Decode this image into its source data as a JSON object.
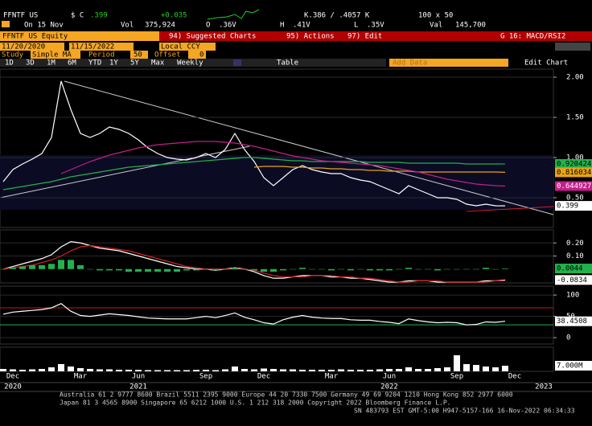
{
  "header": {
    "ticker": "FFNTF US",
    "currency": "$ C",
    "last": ".399",
    "change": "+0.035",
    "date": "On 15 Nov",
    "vol_label": "Vol",
    "vol": "375,924",
    "open_label": "O",
    "open": ".36V",
    "high_label": "H",
    "high": ".41V",
    "low_label": "L",
    "low": ".35V",
    "bid_ask": "K.386 / .4057 K",
    "size": "100 x 50",
    "val_label": "Val",
    "val": "145,700"
  },
  "menu": {
    "security": "FFNTF US Equity",
    "suggested": "94) Suggested Charts",
    "actions": "95) Actions",
    "edit": "97) Edit",
    "template": "G 16: MACD/RSI2"
  },
  "settings": {
    "start": "11/20/2020",
    "end": "11/15/2022",
    "ccy": "Local CCY",
    "study_label": "Study",
    "study": "Simple MA",
    "period_label": "Period",
    "period": "50",
    "offset_label": "Offset",
    "offset": "0",
    "add_data": "Add Data",
    "edit_chart": "Edit Chart"
  },
  "toolbar": {
    "ranges": [
      "1D",
      "3D",
      "1M",
      "6M",
      "YTD",
      "1Y",
      "5Y",
      "Max"
    ],
    "freq": "Weekly",
    "table": "Table"
  },
  "footer": {
    "line1": "Australia 61 2 9777 8600 Brazil 5511 2395 9000 Europe 44 20 7330 7500 Germany 49 69 9204 1210 Hong Kong 852 2977 6000",
    "line2": "Japan 81 3 4565 8900      Singapore 65 6212 1000      U.S. 1 212 318 2000           Copyright 2022 Bloomberg Finance L.P.",
    "line3": "SN 483793 EST  GMT-5:00 H947-5157-166 16-Nov-2022 06:34:33"
  },
  "chart_data": [
    {
      "type": "line",
      "panel": "price",
      "categories": [
        null,
        "Dec",
        null,
        null,
        null,
        null,
        null,
        null,
        "Mar",
        null,
        null,
        null,
        null,
        null,
        "Jun",
        null,
        null,
        null,
        null,
        null,
        null,
        "Sep",
        null,
        null,
        null,
        null,
        null,
        "Dec",
        null,
        null,
        null,
        null,
        null,
        null,
        "Mar",
        null,
        null,
        null,
        null,
        null,
        "Jun",
        null,
        null,
        null,
        null,
        null,
        null,
        "Sep",
        null,
        null,
        null,
        null,
        null,
        "Dec",
        null,
        null,
        null
      ],
      "years": [
        null,
        "2020",
        null,
        null,
        null,
        null,
        null,
        null,
        null,
        null,
        null,
        null,
        null,
        null,
        "2021",
        null,
        null,
        null,
        null,
        null,
        null,
        null,
        null,
        null,
        null,
        null,
        null,
        null,
        null,
        null,
        null,
        null,
        null,
        null,
        null,
        null,
        null,
        null,
        null,
        null,
        "2022",
        null,
        null,
        null,
        null,
        null,
        null,
        null,
        null,
        null,
        null,
        null,
        null,
        null,
        null,
        null,
        "2023"
      ],
      "ylim": [
        0.13,
        2.1
      ],
      "yticks": [
        {
          "value": 0.5,
          "label": "0.50"
        },
        {
          "value": 1,
          "label": "1.00"
        },
        {
          "value": 1.5,
          "label": "1.50"
        },
        {
          "value": 2,
          "label": "2.00"
        }
      ],
      "series": [
        {
          "color": "#ffffff",
          "values": [
            0.7,
            0.85,
            0.92,
            0.98,
            1.05,
            1.25,
            1.95,
            1.6,
            1.3,
            1.25,
            1.3,
            1.38,
            1.35,
            1.3,
            1.22,
            1.12,
            1.05,
            1.0,
            0.98,
            0.97,
            1.0,
            1.05,
            1.0,
            1.1,
            1.3,
            1.1,
            0.95,
            0.75,
            0.65,
            0.75,
            0.85,
            0.9,
            0.85,
            0.82,
            0.8,
            0.8,
            0.75,
            0.72,
            0.7,
            0.65,
            0.6,
            0.55,
            0.65,
            0.6,
            0.55,
            0.5,
            0.5,
            0.48,
            0.42,
            0.4,
            0.42,
            0.4,
            0.399,
            null,
            null,
            null,
            null
          ],
          "box_text": "#000000"
        },
        {
          "color": "#22b14c",
          "values": [
            0.6,
            0.62,
            0.64,
            0.66,
            0.68,
            0.7,
            0.73,
            0.76,
            0.78,
            0.8,
            0.82,
            0.84,
            0.86,
            0.88,
            0.89,
            0.9,
            0.91,
            0.92,
            0.93,
            0.94,
            0.95,
            0.96,
            0.97,
            0.98,
            0.99,
            1.0,
            1.0,
            0.99,
            0.98,
            0.97,
            0.96,
            0.96,
            0.95,
            0.95,
            0.95,
            0.95,
            0.95,
            0.95,
            0.94,
            0.94,
            0.94,
            0.94,
            0.93,
            0.93,
            0.93,
            0.93,
            0.93,
            0.93,
            0.92,
            0.92,
            0.92,
            0.92,
            0.920424,
            null,
            null,
            null,
            null
          ],
          "box_text": "#000000"
        },
        {
          "color": "#e8a317",
          "values": [
            null,
            null,
            null,
            null,
            null,
            null,
            null,
            null,
            null,
            null,
            null,
            null,
            null,
            null,
            null,
            null,
            null,
            null,
            null,
            null,
            null,
            null,
            null,
            null,
            null,
            null,
            0.88,
            0.89,
            0.89,
            0.89,
            0.88,
            0.88,
            0.87,
            0.87,
            0.86,
            0.86,
            0.85,
            0.85,
            0.84,
            0.84,
            0.83,
            0.83,
            0.83,
            0.82,
            0.82,
            0.82,
            0.82,
            0.82,
            0.82,
            0.82,
            0.82,
            0.82,
            0.816034,
            null,
            null,
            null,
            null
          ],
          "box_text": "#000000"
        },
        {
          "color": "#c0208a",
          "values": [
            null,
            null,
            null,
            null,
            null,
            null,
            0.8,
            0.85,
            0.9,
            0.95,
            0.99,
            1.03,
            1.06,
            1.09,
            1.12,
            1.14,
            1.16,
            1.17,
            1.18,
            1.19,
            1.2,
            1.2,
            1.2,
            1.19,
            1.18,
            1.16,
            1.14,
            1.11,
            1.08,
            1.05,
            1.02,
            1.0,
            0.98,
            0.96,
            0.95,
            0.94,
            0.93,
            0.92,
            0.91,
            0.9,
            0.88,
            0.86,
            0.84,
            0.82,
            0.79,
            0.76,
            0.73,
            0.71,
            0.69,
            0.67,
            0.66,
            0.65,
            0.644927,
            null,
            null,
            null,
            null
          ],
          "box_text": "#ffffff"
        }
      ]
    },
    {
      "type": "line",
      "panel": "macd",
      "ylim": [
        -0.106,
        0.3
      ],
      "yticks": [
        {
          "value": 0.1,
          "label": "0.10"
        },
        {
          "value": 0.2,
          "label": "0.20"
        }
      ],
      "series": [
        {
          "color": "#ffffff",
          "values": [
            0.0,
            0.02,
            0.04,
            0.06,
            0.08,
            0.11,
            0.17,
            0.21,
            0.2,
            0.18,
            0.16,
            0.15,
            0.14,
            0.12,
            0.1,
            0.08,
            0.06,
            0.04,
            0.02,
            0.01,
            0.0,
            0.0,
            -0.01,
            0.0,
            0.01,
            0.0,
            -0.02,
            -0.05,
            -0.07,
            -0.07,
            -0.06,
            -0.05,
            -0.05,
            -0.05,
            -0.06,
            -0.06,
            -0.07,
            -0.07,
            -0.08,
            -0.09,
            -0.1,
            -0.1,
            -0.09,
            -0.09,
            -0.09,
            -0.1,
            -0.1,
            -0.1,
            -0.1,
            -0.1,
            -0.09,
            -0.09,
            -0.0834,
            null,
            null,
            null,
            null
          ],
          "box_text": "#000000"
        },
        {
          "color": "#d02020",
          "values": [
            0.0,
            0.01,
            0.02,
            0.03,
            0.05,
            0.07,
            0.1,
            0.14,
            0.17,
            0.18,
            0.17,
            0.16,
            0.15,
            0.14,
            0.12,
            0.1,
            0.08,
            0.06,
            0.04,
            0.02,
            0.01,
            0.0,
            0.0,
            0.0,
            0.0,
            0.0,
            -0.01,
            -0.03,
            -0.05,
            -0.06,
            -0.06,
            -0.06,
            -0.05,
            -0.05,
            -0.05,
            -0.06,
            -0.06,
            -0.07,
            -0.07,
            -0.08,
            -0.09,
            -0.1,
            -0.1,
            -0.09,
            -0.09,
            -0.09,
            -0.1,
            -0.1,
            -0.1,
            -0.1,
            -0.1,
            -0.09,
            -0.09,
            null,
            null,
            null,
            null
          ]
        },
        {
          "type": "bar",
          "color": "#22b14c",
          "values": [
            0.0,
            0.01,
            0.02,
            0.03,
            0.03,
            0.04,
            0.07,
            0.07,
            0.03,
            0.0,
            -0.01,
            -0.01,
            -0.01,
            -0.02,
            -0.02,
            -0.02,
            -0.02,
            -0.02,
            -0.02,
            -0.01,
            -0.01,
            0.0,
            -0.01,
            0.0,
            0.01,
            0.0,
            -0.01,
            -0.02,
            -0.02,
            -0.01,
            0.0,
            0.01,
            0.0,
            0.0,
            -0.01,
            0.0,
            -0.01,
            0.0,
            -0.01,
            -0.01,
            -0.01,
            0.0,
            0.01,
            0.0,
            0.0,
            -0.01,
            0.0,
            0.0,
            0.0,
            0.0,
            0.01,
            0.0,
            0.0044,
            null,
            null,
            null,
            null
          ],
          "box_text": "#000000"
        }
      ]
    },
    {
      "type": "line",
      "panel": "rsi",
      "ylim": [
        -15,
        121
      ],
      "yticks": [
        0,
        50,
        100
      ],
      "levels": [
        {
          "value": 70,
          "color": "#c01818"
        },
        {
          "value": 30,
          "color": "#22b14c"
        }
      ],
      "series": [
        {
          "color": "#ffffff",
          "values": [
            55,
            60,
            62,
            64,
            66,
            70,
            80,
            62,
            52,
            50,
            53,
            56,
            54,
            52,
            49,
            46,
            45,
            44,
            44,
            44,
            47,
            50,
            47,
            52,
            58,
            48,
            42,
            35,
            32,
            42,
            48,
            52,
            48,
            46,
            45,
            45,
            42,
            41,
            41,
            38,
            36,
            33,
            44,
            40,
            37,
            35,
            36,
            35,
            30,
            31,
            37,
            36,
            38.4508,
            null,
            null,
            null,
            null
          ],
          "box_text": "#000000"
        }
      ]
    },
    {
      "type": "bar",
      "panel": "volume",
      "ylim": [
        0,
        30000000
      ],
      "series": [
        {
          "color": "#ffffff",
          "values": [
            3000000,
            2500000,
            2000000,
            2500000,
            3000000,
            5000000,
            9000000,
            6000000,
            4000000,
            3000000,
            2500000,
            2500000,
            2000000,
            2000000,
            1800000,
            1500000,
            1500000,
            1500000,
            1500000,
            1500000,
            1800000,
            2000000,
            1500000,
            2500000,
            6000000,
            3000000,
            2500000,
            3500000,
            3000000,
            2500000,
            2500000,
            2000000,
            2000000,
            2000000,
            2000000,
            2500000,
            2000000,
            2000000,
            2000000,
            2500000,
            3000000,
            3000000,
            5000000,
            3000000,
            3000000,
            4000000,
            5000000,
            20000000,
            9000000,
            8000000,
            6000000,
            5000000,
            7000000,
            null,
            null,
            null,
            null
          ],
          "value_labels": [
            null,
            null,
            null,
            null,
            null,
            null,
            null,
            null,
            null,
            null,
            null,
            null,
            null,
            null,
            null,
            null,
            null,
            null,
            null,
            null,
            null,
            null,
            null,
            null,
            null,
            null,
            null,
            null,
            null,
            null,
            null,
            null,
            null,
            null,
            null,
            null,
            null,
            null,
            null,
            null,
            null,
            null,
            null,
            null,
            null,
            null,
            null,
            null,
            null,
            null,
            null,
            null,
            "7.000M",
            null,
            null,
            null,
            null
          ],
          "box_text": "#000000"
        }
      ]
    }
  ]
}
